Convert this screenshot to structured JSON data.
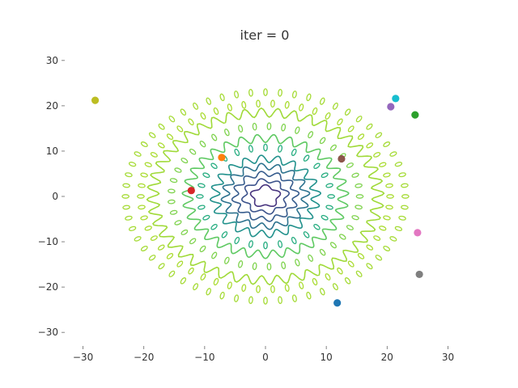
{
  "chart_data": {
    "type": "scatter",
    "title": "iter = 0",
    "xlabel": "",
    "ylabel": "",
    "xlim": [
      -33,
      33
    ],
    "ylim": [
      -33,
      33
    ],
    "xticks": [
      -30,
      -20,
      -10,
      0,
      10,
      20,
      30
    ],
    "yticks": [
      -30,
      -20,
      -10,
      0,
      10,
      20,
      30
    ],
    "xtick_labels": [
      "−30",
      "−20",
      "−10",
      "0",
      "10",
      "20",
      "30"
    ],
    "ytick_labels": [
      "−30",
      "−20",
      "−10",
      "0",
      "10",
      "20",
      "30"
    ],
    "grid": false,
    "background": "contour plot of a radially symmetric rippled objective function centred at (0, 0)",
    "contour_levels": [
      {
        "radius": 2.2,
        "ripple": 0.35,
        "color": "#46337e",
        "style": "solid"
      },
      {
        "radius": 3.5,
        "ripple": 0.45,
        "color": "#3b528b",
        "style": "solid"
      },
      {
        "radius": 5.0,
        "ripple": 0.55,
        "color": "#365c8d",
        "style": "solid"
      },
      {
        "radius": 6.6,
        "ripple": 0.7,
        "color": "#2c728e",
        "style": "solid"
      },
      {
        "radius": 8.3,
        "ripple": 0.8,
        "color": "#21918c",
        "style": "solid"
      },
      {
        "radius": 10.8,
        "ripple": 0.9,
        "color": "#27ad81",
        "style": "blobs"
      },
      {
        "radius": 12.8,
        "ripple": 0.9,
        "color": "#5ec962",
        "style": "solid"
      },
      {
        "radius": 15.5,
        "ripple": 0.9,
        "color": "#7fd34e",
        "style": "blobs"
      },
      {
        "radius": 18.5,
        "ripple": 1.0,
        "color": "#a0da39",
        "style": "solid"
      },
      {
        "radius": 20.5,
        "ripple": 0.9,
        "color": "#aadc32",
        "style": "blobs"
      },
      {
        "radius": 23.0,
        "ripple": 0.9,
        "color": "#a5db36",
        "style": "blobs"
      }
    ],
    "series": [
      {
        "color": "#1f77b4",
        "points": [
          [
            11.8,
            -23.5
          ]
        ]
      },
      {
        "color": "#ff7f0e",
        "points": [
          [
            -7.2,
            8.6
          ]
        ]
      },
      {
        "color": "#2ca02c",
        "points": [
          [
            24.6,
            18.0
          ]
        ]
      },
      {
        "color": "#d62728",
        "points": [
          [
            -12.2,
            1.3
          ]
        ]
      },
      {
        "color": "#9467bd",
        "points": [
          [
            20.6,
            19.8
          ]
        ]
      },
      {
        "color": "#8c564b",
        "points": [
          [
            12.5,
            8.3
          ]
        ]
      },
      {
        "color": "#e377c2",
        "points": [
          [
            25.0,
            -8.0
          ]
        ]
      },
      {
        "color": "#7f7f7f",
        "points": [
          [
            25.3,
            -17.2
          ]
        ]
      },
      {
        "color": "#bcbd22",
        "points": [
          [
            -28.0,
            21.2
          ]
        ]
      },
      {
        "color": "#17becf",
        "points": [
          [
            21.4,
            21.6
          ]
        ]
      }
    ]
  }
}
